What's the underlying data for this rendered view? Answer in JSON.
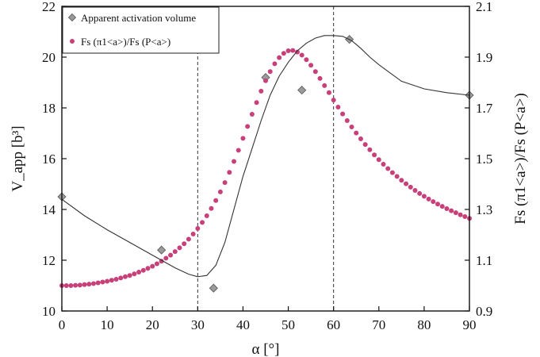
{
  "chart_data": {
    "type": "scatter",
    "title": "",
    "xlabel": "α [°]",
    "ylabel_left": "V_app [b³]",
    "ylabel_right": "Fs (π1<a>)/Fs (P<a>)",
    "xlim": [
      0,
      90
    ],
    "ylim_left": [
      10,
      22
    ],
    "ylim_right": [
      0.9,
      2.1
    ],
    "x_ticks": [
      0,
      10,
      20,
      30,
      40,
      50,
      60,
      70,
      80,
      90
    ],
    "y_left_ticks": [
      10,
      12,
      14,
      16,
      18,
      20,
      22
    ],
    "y_right_ticks": [
      "0.9",
      "1.1",
      "1.3",
      "1.5",
      "1.7",
      "1.9",
      "2.1"
    ],
    "grid": false,
    "legend_position": "top-left",
    "reference_lines_x": [
      30,
      60
    ],
    "series": [
      {
        "name": "Apparent activation volume",
        "axis": "left",
        "marker": "diamond",
        "color": "#9a9a9a",
        "points": [
          {
            "x": 0,
            "y": 14.5
          },
          {
            "x": 22,
            "y": 12.4
          },
          {
            "x": 33.5,
            "y": 10.9
          },
          {
            "x": 45,
            "y": 19.2
          },
          {
            "x": 53,
            "y": 18.7
          },
          {
            "x": 63.5,
            "y": 20.7
          },
          {
            "x": 90,
            "y": 18.5
          }
        ]
      },
      {
        "name": "Fs (π1<a>)/Fs (P<a>)",
        "axis": "right",
        "marker": "circle",
        "color": "#c8407a",
        "x": [
          0,
          1,
          2,
          3,
          4,
          5,
          6,
          7,
          8,
          9,
          10,
          11,
          12,
          13,
          14,
          15,
          16,
          17,
          18,
          19,
          20,
          21,
          22,
          23,
          24,
          25,
          26,
          27,
          28,
          29,
          30,
          31,
          32,
          33,
          34,
          35,
          36,
          37,
          38,
          39,
          40,
          41,
          42,
          43,
          44,
          45,
          46,
          47,
          48,
          49,
          50,
          51,
          52,
          53,
          54,
          55,
          56,
          57,
          58,
          59,
          60,
          61,
          62,
          63,
          64,
          65,
          66,
          67,
          68,
          69,
          70,
          71,
          72,
          73,
          74,
          75,
          76,
          77,
          78,
          79,
          80,
          81,
          82,
          83,
          84,
          85,
          86,
          87,
          88,
          89,
          90
        ],
        "y": [
          1.0,
          1.0,
          1.0,
          1.001,
          1.002,
          1.004,
          1.006,
          1.008,
          1.011,
          1.014,
          1.017,
          1.021,
          1.025,
          1.03,
          1.035,
          1.04,
          1.046,
          1.053,
          1.06,
          1.068,
          1.076,
          1.086,
          1.096,
          1.108,
          1.12,
          1.134,
          1.149,
          1.165,
          1.183,
          1.203,
          1.225,
          1.249,
          1.275,
          1.304,
          1.335,
          1.369,
          1.406,
          1.446,
          1.489,
          1.533,
          1.58,
          1.627,
          1.675,
          1.721,
          1.766,
          1.807,
          1.843,
          1.874,
          1.898,
          1.915,
          1.925,
          1.926,
          1.92,
          1.908,
          1.89,
          1.868,
          1.843,
          1.816,
          1.788,
          1.76,
          1.731,
          1.703,
          1.676,
          1.65,
          1.625,
          1.601,
          1.578,
          1.556,
          1.535,
          1.515,
          1.496,
          1.478,
          1.461,
          1.445,
          1.43,
          1.415,
          1.401,
          1.388,
          1.375,
          1.363,
          1.352,
          1.341,
          1.331,
          1.321,
          1.312,
          1.303,
          1.295,
          1.287,
          1.279,
          1.272,
          1.265
        ]
      },
      {
        "name": "",
        "axis": "left",
        "marker": "none",
        "line_style": "thin-solid",
        "color": "#333333",
        "x": [
          0,
          5,
          10,
          15,
          20,
          25,
          28,
          30,
          32,
          34,
          36,
          38,
          40,
          42,
          44,
          46,
          48,
          50,
          52,
          54,
          56,
          58,
          60,
          62,
          64,
          66,
          68,
          70,
          75,
          80,
          85,
          90
        ],
        "y": [
          14.4,
          13.75,
          13.2,
          12.7,
          12.2,
          11.7,
          11.45,
          11.35,
          11.4,
          11.8,
          12.7,
          14.0,
          15.3,
          16.4,
          17.5,
          18.5,
          19.25,
          19.8,
          20.25,
          20.55,
          20.75,
          20.85,
          20.85,
          20.82,
          20.65,
          20.35,
          20.0,
          19.7,
          19.05,
          18.75,
          18.6,
          18.5
        ]
      }
    ]
  }
}
